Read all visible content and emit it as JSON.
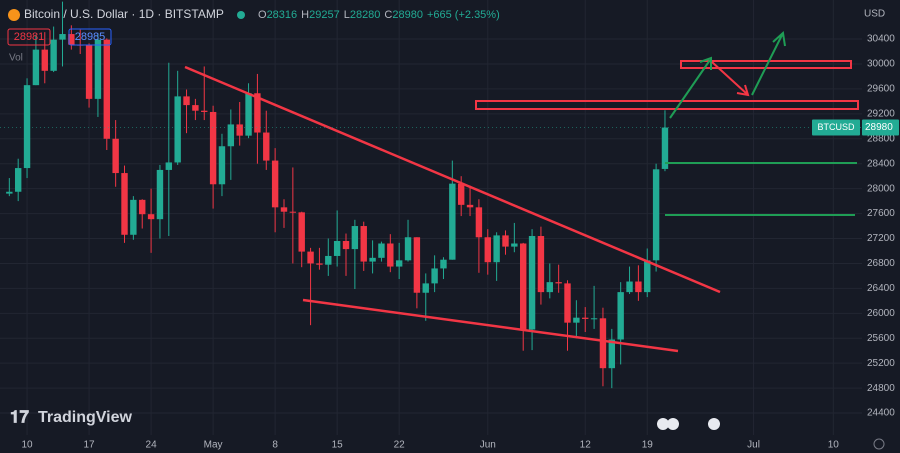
{
  "header": {
    "title": "Bitcoin / U.S. Dollar · 1D · BITSTAMP",
    "ohlc": [
      {
        "label": "O",
        "value": "28316"
      },
      {
        "label": "H",
        "value": "29257"
      },
      {
        "label": "L",
        "value": "28280"
      },
      {
        "label": "C",
        "value": "28980"
      }
    ],
    "change": "+665 (+2.35%)",
    "sell": "28981",
    "buy": "28985",
    "volume_label": "Vol"
  },
  "footer": {
    "logo": "TradingView"
  },
  "chart_data": {
    "type": "candlestick",
    "currency": "USD",
    "last_price_tag": {
      "symbol": "BTCUSD",
      "price": "28980"
    },
    "up_color": "#22ab94",
    "down_color": "#f23645",
    "categories": [
      null,
      null,
      "10",
      null,
      null,
      null,
      null,
      null,
      null,
      "17",
      null,
      null,
      null,
      null,
      null,
      null,
      "24",
      null,
      null,
      null,
      null,
      null,
      null,
      "May",
      null,
      null,
      null,
      null,
      null,
      null,
      "8",
      null,
      null,
      null,
      null,
      null,
      null,
      "15",
      null,
      null,
      null,
      null,
      null,
      null,
      "22",
      null,
      null,
      null,
      null,
      null,
      null,
      null,
      null,
      null,
      "Jun",
      null,
      null,
      null,
      null,
      null,
      null,
      null,
      null,
      null,
      null,
      "12",
      null,
      null,
      null,
      null,
      null,
      null,
      "19",
      null,
      null,
      null,
      null,
      null,
      null,
      null,
      null,
      null,
      null,
      null,
      "Jul",
      null,
      null,
      null,
      null,
      null,
      null,
      null,
      null,
      "10",
      null,
      null
    ],
    "open": [
      27920,
      27950,
      28330,
      29660,
      30230,
      29890,
      30390,
      30480,
      30310,
      30300,
      29440,
      30390,
      28800,
      28250,
      27260,
      27820,
      27590,
      27510,
      28300,
      28420,
      29480,
      29340,
      29250,
      29230,
      28070,
      28680,
      29030,
      28850,
      29530,
      28900,
      28450,
      27700,
      27630,
      27620,
      26990,
      26800,
      26780,
      26920,
      27160,
      27030,
      27400,
      26830,
      26890,
      27120,
      26750,
      26850,
      27220,
      26330,
      26480,
      26720,
      26860,
      28080,
      27740,
      27700,
      27220,
      26820,
      27250,
      27070,
      27120,
      25740,
      27240,
      26340,
      26500,
      26480,
      25850,
      25930,
      25910,
      25920,
      25120,
      25580,
      26340,
      26510,
      26340,
      26850,
      28316,
      null,
      null,
      null,
      null,
      null,
      null,
      null,
      null,
      null,
      null,
      null,
      null,
      null,
      null,
      null,
      null,
      null,
      null,
      null,
      null,
      null
    ],
    "high": [
      28170,
      28480,
      29770,
      30470,
      30510,
      30600,
      31000,
      30620,
      30550,
      30330,
      30490,
      30410,
      29100,
      28370,
      27880,
      27830,
      28000,
      28380,
      30020,
      29890,
      29590,
      29440,
      29960,
      29330,
      28880,
      29270,
      29390,
      29690,
      29840,
      29250,
      28650,
      27830,
      28340,
      27630,
      27050,
      27050,
      27200,
      27650,
      27280,
      27500,
      27470,
      27170,
      27150,
      27270,
      27130,
      27500,
      27220,
      26640,
      26930,
      26900,
      28450,
      28200,
      28050,
      27830,
      27350,
      27300,
      27330,
      27450,
      27130,
      27350,
      27390,
      26800,
      26780,
      26530,
      26210,
      26100,
      26440,
      26090,
      25750,
      26500,
      26750,
      26770,
      27040,
      28400,
      29257,
      null,
      null,
      null,
      null,
      null,
      null,
      null,
      null,
      null,
      null,
      null,
      null,
      null,
      null,
      null,
      null,
      null,
      null,
      null,
      null,
      null
    ],
    "low": [
      27880,
      27800,
      28170,
      29660,
      29690,
      29870,
      29960,
      30230,
      30160,
      29300,
      29150,
      28620,
      28030,
      27130,
      27180,
      27360,
      26970,
      27200,
      27240,
      28380,
      28890,
      29100,
      29100,
      27680,
      27880,
      28140,
      28690,
      28810,
      28400,
      28300,
      27300,
      27370,
      26800,
      26740,
      25810,
      26700,
      26600,
      26750,
      26600,
      26390,
      26680,
      26640,
      26830,
      26660,
      26550,
      26830,
      26080,
      25880,
      26340,
      26550,
      26860,
      27560,
      27560,
      26650,
      26620,
      26520,
      26940,
      26980,
      25400,
      25410,
      26140,
      26240,
      26330,
      25400,
      25600,
      25700,
      25750,
      24830,
      24800,
      25180,
      26310,
      26200,
      26260,
      26670,
      28280,
      null,
      null,
      null,
      null,
      null,
      null,
      null,
      null,
      null,
      null,
      null,
      null,
      null,
      null,
      null,
      null,
      null,
      null,
      null,
      null,
      null
    ],
    "close": [
      27950,
      28330,
      29660,
      30230,
      29890,
      30390,
      30480,
      30310,
      30300,
      29440,
      30390,
      28800,
      28250,
      27260,
      27820,
      27590,
      27510,
      28300,
      28420,
      29480,
      29340,
      29250,
      29230,
      28070,
      28680,
      29030,
      28850,
      29530,
      28900,
      28450,
      27700,
      27630,
      27620,
      26990,
      26800,
      26780,
      26920,
      27160,
      27030,
      27400,
      26830,
      26890,
      27120,
      26750,
      26850,
      27220,
      26330,
      26480,
      26720,
      26860,
      28080,
      27740,
      27700,
      27220,
      26820,
      27250,
      27070,
      27120,
      25740,
      27240,
      26340,
      26500,
      26480,
      25850,
      25930,
      25910,
      25920,
      25120,
      25580,
      26340,
      26510,
      26340,
      26850,
      28310,
      28980,
      null,
      null,
      null,
      null,
      null,
      null,
      null,
      null,
      null,
      null,
      null,
      null,
      null,
      null,
      null,
      null,
      null,
      null,
      null,
      null,
      null
    ],
    "ylim": [
      24048,
      31026
    ],
    "yticks": [
      24400,
      24800,
      25200,
      25600,
      26000,
      26400,
      26800,
      27200,
      27600,
      28000,
      28400,
      28800,
      29200,
      29600,
      30000,
      30400
    ],
    "last_price": 28980,
    "grid": true
  }
}
